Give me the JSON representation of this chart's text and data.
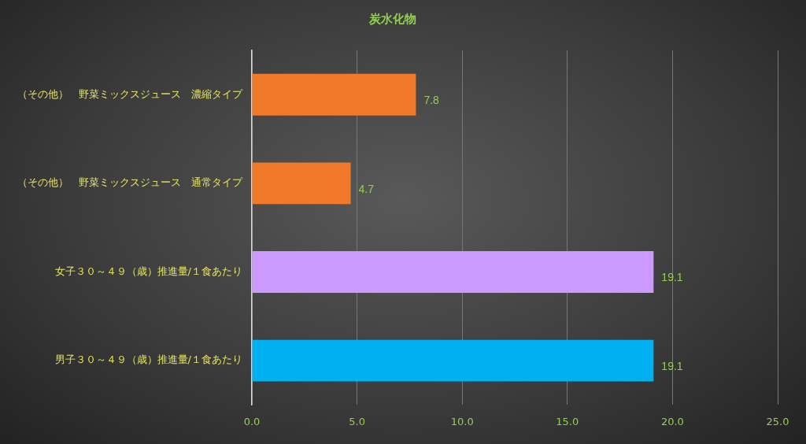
{
  "chart_data": {
    "type": "bar",
    "orientation": "horizontal",
    "title": "炭水化物",
    "categories": [
      "（その他）　野菜ミックスジュース　濃縮タイプ",
      "（その他）　野菜ミックスジュース　通常タイプ",
      "女子３０～４９（歳）推進量/１食あたり",
      "男子３０～４９（歳）推進量/１食あたり"
    ],
    "values": [
      7.8,
      4.7,
      19.1,
      19.1
    ],
    "colors": [
      "#f07a2a",
      "#f07a2a",
      "#cc99ff",
      "#00b0f0"
    ],
    "xlim": [
      0,
      25
    ],
    "xticks": [
      {
        "value": 0,
        "label": "0.0"
      },
      {
        "value": 5,
        "label": "5.0"
      },
      {
        "value": 10,
        "label": "10.0"
      },
      {
        "value": 15,
        "label": "15.0"
      },
      {
        "value": 20,
        "label": "20.0"
      },
      {
        "value": 25,
        "label": "25.0"
      }
    ],
    "grid": "x",
    "data_labels": true,
    "legend": false
  }
}
